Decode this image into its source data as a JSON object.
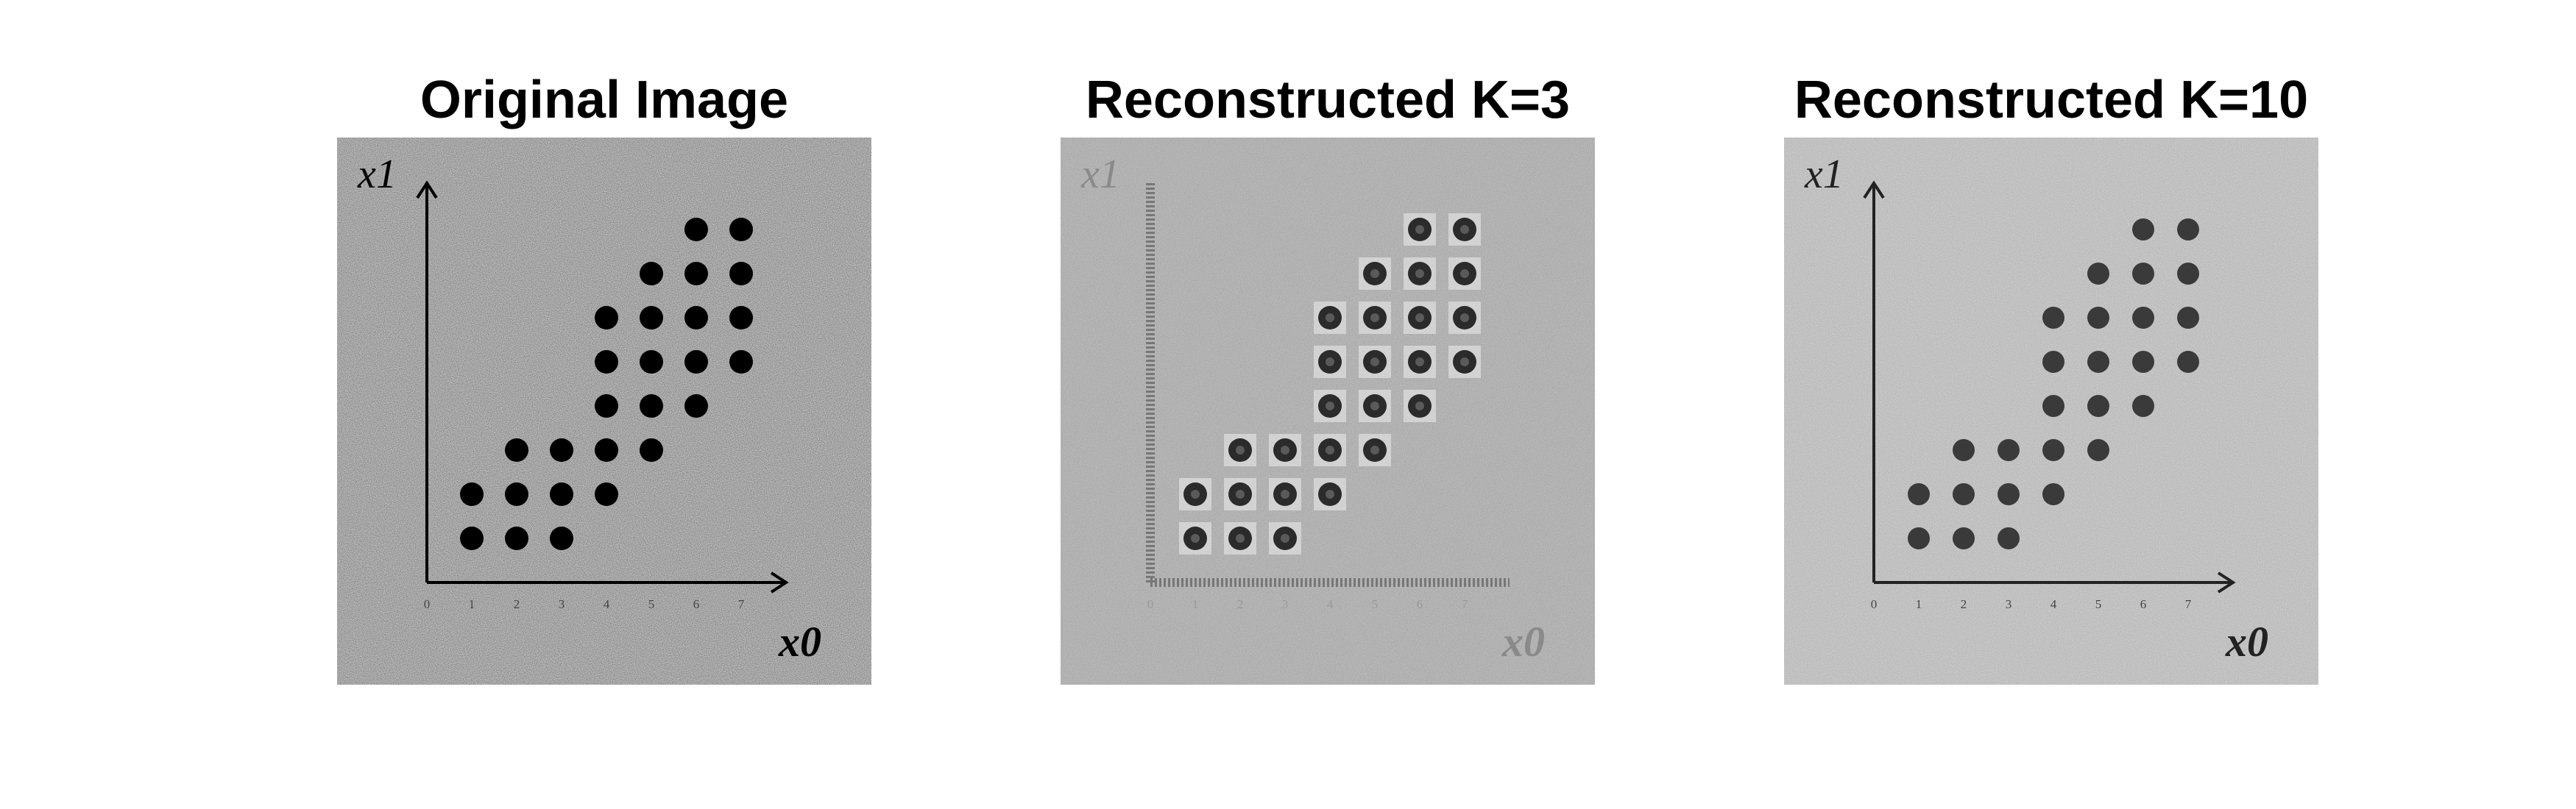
{
  "figure": {
    "panels": [
      {
        "title": "Original Image",
        "style": "original",
        "background": "#e3e3e3",
        "dot_color": "#000000",
        "axis_color": "#000000",
        "y_axis_label": "x1",
        "x_axis_label": "x0",
        "x_ticks": [
          "0",
          "1",
          "2",
          "3",
          "4",
          "5",
          "6",
          "7"
        ]
      },
      {
        "title": "Reconstructed K=3",
        "style": "k3",
        "background": "#c3c3c3",
        "dot_color": "#2b2b2b",
        "axis_color": "#555555",
        "y_axis_label": "x1",
        "x_axis_label": "x0",
        "x_ticks": [
          "0",
          "1",
          "2",
          "3",
          "4",
          "5",
          "6",
          "7"
        ]
      },
      {
        "title": "Reconstructed K=10",
        "style": "k10",
        "background": "#d4d4d4",
        "dot_color": "#3a3a3a",
        "axis_color": "#222222",
        "y_axis_label": "x1",
        "x_axis_label": "x0",
        "x_ticks": [
          "0",
          "1",
          "2",
          "3",
          "4",
          "5",
          "6",
          "7"
        ]
      }
    ],
    "dot_rows": [
      {
        "y": 8,
        "x": [
          6,
          7
        ]
      },
      {
        "y": 7,
        "x": [
          5,
          6,
          7
        ]
      },
      {
        "y": 6,
        "x": [
          4,
          5,
          6,
          7
        ]
      },
      {
        "y": 5,
        "x": [
          4,
          5,
          6,
          7
        ]
      },
      {
        "y": 4,
        "x": [
          4,
          5,
          6
        ]
      },
      {
        "y": 3,
        "x": [
          2,
          3,
          4,
          5
        ]
      },
      {
        "y": 2,
        "x": [
          1,
          2,
          3,
          4
        ]
      },
      {
        "y": 1,
        "x": [
          1,
          2,
          3
        ]
      }
    ]
  }
}
